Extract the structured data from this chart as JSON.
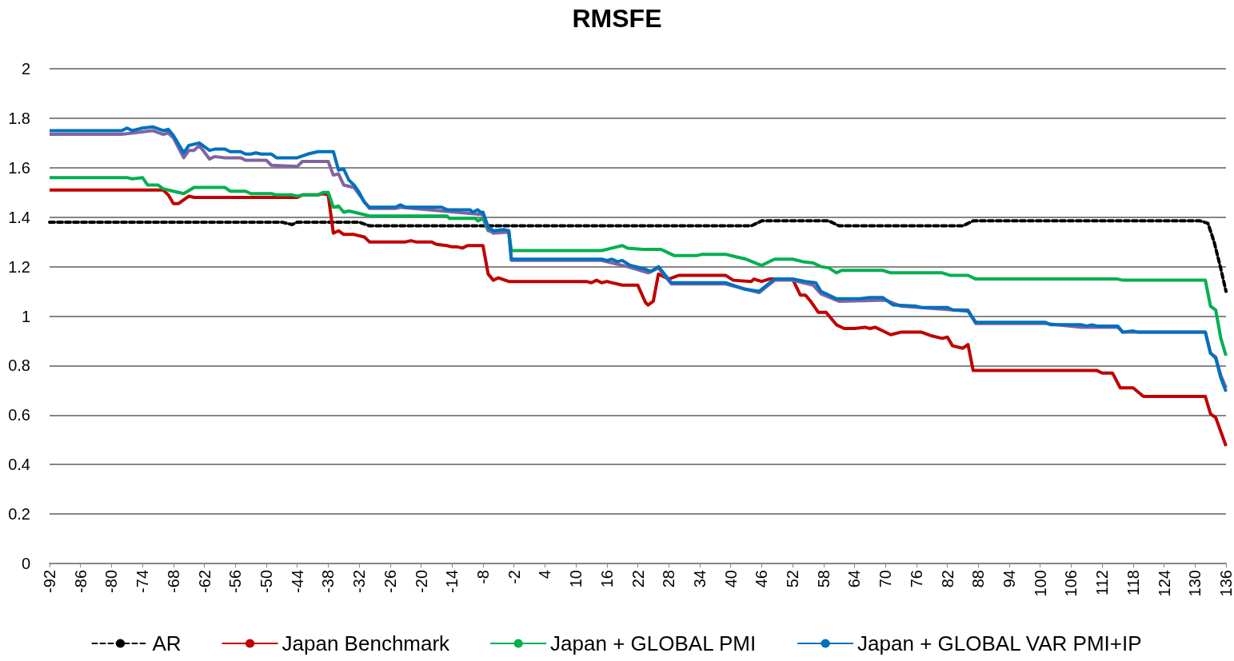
{
  "chart_data": {
    "type": "line",
    "title": "RMSFE",
    "xlim": [
      -92,
      136
    ],
    "xticks": [
      -92,
      -86,
      -80,
      -74,
      -68,
      -62,
      -56,
      -50,
      -44,
      -38,
      -32,
      -26,
      -20,
      -14,
      -8,
      -2,
      4,
      10,
      16,
      22,
      28,
      34,
      40,
      46,
      52,
      58,
      64,
      70,
      76,
      82,
      88,
      94,
      100,
      106,
      112,
      118,
      124,
      130,
      136
    ],
    "ylim": [
      0,
      2
    ],
    "yticks": [
      0,
      0.2,
      0.4,
      0.6,
      0.8,
      1,
      1.2,
      1.4,
      1.6,
      1.8,
      2
    ],
    "grid": "y",
    "legend": "bottom",
    "marker": "none",
    "series": [
      {
        "name": "AR",
        "color": "#000000",
        "line_style": "dashed",
        "x": [
          -92,
          -47,
          -46,
          -45,
          -44,
          -32,
          -30,
          44,
          46,
          59,
          61,
          85,
          87,
          131,
          132.5,
          133.7,
          134.9,
          136
        ],
        "values": [
          1.38,
          1.38,
          1.375,
          1.37,
          1.38,
          1.38,
          1.365,
          1.365,
          1.385,
          1.385,
          1.365,
          1.365,
          1.385,
          1.385,
          1.375,
          1.3,
          1.2,
          1.1
        ]
      },
      {
        "name": "Japan Benchmark",
        "color": "#c00000",
        "line_style": "solid",
        "x": [
          -92,
          -72,
          -70,
          -69,
          -68,
          -67,
          -65,
          -64,
          -44,
          -43,
          -40,
          -39,
          -38,
          -37,
          -36,
          -35,
          -33,
          -31,
          -30,
          -23,
          -22,
          -21,
          -18,
          -17,
          -15,
          -14,
          -13,
          -12,
          -11,
          -8,
          -7,
          -6,
          -5,
          -3,
          12,
          13,
          14,
          15,
          16,
          19,
          22,
          23.5,
          24,
          25,
          26,
          28,
          30,
          39,
          40.5,
          44,
          44.5,
          46,
          47.5,
          52,
          53.5,
          54.5,
          55.5,
          57,
          58.5,
          60.5,
          62,
          64,
          66,
          67,
          68,
          69.5,
          71,
          73,
          77,
          79,
          81,
          82,
          83,
          85,
          86,
          87,
          111,
          112,
          114,
          115.5,
          118,
          120,
          132,
          133,
          134,
          136
        ],
        "values": [
          1.51,
          1.51,
          1.51,
          1.49,
          1.455,
          1.455,
          1.485,
          1.48,
          1.48,
          1.49,
          1.49,
          1.495,
          1.49,
          1.335,
          1.345,
          1.33,
          1.33,
          1.32,
          1.3,
          1.3,
          1.305,
          1.3,
          1.3,
          1.29,
          1.285,
          1.28,
          1.28,
          1.275,
          1.285,
          1.285,
          1.17,
          1.145,
          1.155,
          1.14,
          1.14,
          1.135,
          1.145,
          1.135,
          1.14,
          1.125,
          1.125,
          1.055,
          1.045,
          1.06,
          1.17,
          1.15,
          1.165,
          1.165,
          1.145,
          1.14,
          1.15,
          1.14,
          1.15,
          1.15,
          1.085,
          1.085,
          1.06,
          1.015,
          1.015,
          0.965,
          0.95,
          0.95,
          0.955,
          0.95,
          0.955,
          0.94,
          0.925,
          0.935,
          0.935,
          0.92,
          0.91,
          0.915,
          0.88,
          0.87,
          0.885,
          0.78,
          0.78,
          0.77,
          0.77,
          0.71,
          0.71,
          0.675,
          0.675,
          0.605,
          0.59,
          0.475
        ]
      },
      {
        "name": "Japan + GLOBAL PMI",
        "color": "#00b050",
        "line_style": "solid",
        "x": [
          -92,
          -77,
          -76,
          -74,
          -73,
          -71,
          -70,
          -68,
          -66,
          -64,
          -58,
          -57,
          -54,
          -53,
          -49,
          -48,
          -45,
          -44,
          -43,
          -40,
          -39,
          -38,
          -37,
          -36,
          -35,
          -34,
          -32,
          -30,
          -15,
          -14.5,
          -9.5,
          -9,
          -8,
          -7,
          -4,
          -3,
          -2.5,
          15,
          17,
          19,
          20,
          23,
          26.5,
          29,
          33.5,
          34.5,
          39,
          41,
          43,
          46,
          48.5,
          52,
          54,
          56,
          57.5,
          59,
          60.5,
          61.5,
          69.5,
          71,
          81,
          82.5,
          86,
          87.5,
          115,
          116,
          132,
          133,
          134,
          135,
          136
        ],
        "values": [
          1.56,
          1.56,
          1.555,
          1.56,
          1.53,
          1.53,
          1.515,
          1.505,
          1.495,
          1.52,
          1.52,
          1.505,
          1.505,
          1.495,
          1.495,
          1.49,
          1.49,
          1.485,
          1.49,
          1.49,
          1.5,
          1.5,
          1.44,
          1.445,
          1.42,
          1.425,
          1.415,
          1.405,
          1.405,
          1.395,
          1.395,
          1.385,
          1.395,
          1.345,
          1.34,
          1.34,
          1.265,
          1.265,
          1.275,
          1.285,
          1.275,
          1.27,
          1.27,
          1.245,
          1.245,
          1.25,
          1.25,
          1.24,
          1.23,
          1.205,
          1.23,
          1.23,
          1.22,
          1.215,
          1.2,
          1.195,
          1.175,
          1.185,
          1.185,
          1.175,
          1.175,
          1.165,
          1.165,
          1.15,
          1.15,
          1.145,
          1.145,
          1.04,
          1.025,
          0.91,
          0.84
        ]
      },
      {
        "color": "#8064a2",
        "line_style": "solid",
        "x": [
          -92,
          -78,
          -74,
          -72,
          -70,
          -69,
          -68,
          -66,
          -65,
          -64,
          -63,
          -61,
          -60,
          -58,
          -55,
          -54,
          -50,
          -49,
          -44,
          -43,
          -38,
          -37,
          -36,
          -35,
          -33,
          -30,
          -25,
          -24,
          -8,
          -7,
          -6,
          -3,
          -2.5,
          15,
          20,
          24,
          26,
          28.5,
          39,
          45.5,
          48.5,
          52,
          56,
          57.5,
          61,
          70,
          73,
          83,
          86,
          87.5,
          101,
          108,
          115,
          116,
          132,
          133,
          134,
          135,
          136
        ],
        "values": [
          1.735,
          1.735,
          1.745,
          1.75,
          1.735,
          1.74,
          1.72,
          1.64,
          1.67,
          1.67,
          1.69,
          1.635,
          1.645,
          1.64,
          1.64,
          1.63,
          1.63,
          1.61,
          1.605,
          1.625,
          1.625,
          1.57,
          1.575,
          1.53,
          1.52,
          1.435,
          1.435,
          1.44,
          1.41,
          1.35,
          1.335,
          1.34,
          1.225,
          1.225,
          1.2,
          1.175,
          1.195,
          1.13,
          1.13,
          1.095,
          1.145,
          1.145,
          1.125,
          1.09,
          1.06,
          1.065,
          1.04,
          1.025,
          1.025,
          0.97,
          0.97,
          0.955,
          0.955,
          0.935,
          0.935,
          0.85,
          0.835,
          0.76,
          0.71
        ]
      },
      {
        "name": "Japan + GLOBAL VAR PMI+IP",
        "color": "#0070c0",
        "line_style": "solid",
        "x": [
          -92,
          -78,
          -77,
          -76,
          -74,
          -72,
          -70,
          -69,
          -68,
          -66,
          -65,
          -63,
          -61,
          -60,
          -58,
          -57,
          -55,
          -54,
          -53,
          -52,
          -51,
          -49,
          -48,
          -44,
          -42,
          -40,
          -37,
          -36,
          -35,
          -34,
          -33,
          -32,
          -31,
          -30,
          -25,
          -24,
          -23,
          -16,
          -15,
          -10.5,
          -10,
          -9,
          -8.5,
          -8,
          -7,
          -6,
          -4,
          -3,
          -2.5,
          15,
          16,
          17,
          18,
          19,
          20.5,
          23.5,
          24.5,
          26,
          28.5,
          39,
          42.5,
          45.5,
          48.5,
          52,
          54.5,
          56.5,
          57.5,
          60.5,
          65,
          67,
          69.5,
          71.5,
          76,
          77,
          82,
          83,
          86,
          87.5,
          101,
          102,
          108,
          109,
          110,
          111,
          115,
          116,
          118,
          119,
          132,
          133,
          134,
          135,
          136
        ],
        "values": [
          1.75,
          1.75,
          1.76,
          1.75,
          1.76,
          1.765,
          1.75,
          1.755,
          1.73,
          1.66,
          1.69,
          1.7,
          1.67,
          1.675,
          1.675,
          1.665,
          1.665,
          1.655,
          1.655,
          1.66,
          1.655,
          1.655,
          1.64,
          1.64,
          1.655,
          1.665,
          1.665,
          1.59,
          1.595,
          1.55,
          1.53,
          1.5,
          1.46,
          1.44,
          1.44,
          1.45,
          1.44,
          1.44,
          1.43,
          1.43,
          1.42,
          1.43,
          1.42,
          1.42,
          1.36,
          1.345,
          1.35,
          1.345,
          1.23,
          1.23,
          1.225,
          1.23,
          1.22,
          1.225,
          1.205,
          1.19,
          1.18,
          1.2,
          1.135,
          1.135,
          1.11,
          1.1,
          1.15,
          1.15,
          1.14,
          1.135,
          1.1,
          1.07,
          1.07,
          1.075,
          1.075,
          1.045,
          1.04,
          1.035,
          1.035,
          1.025,
          1.02,
          0.975,
          0.975,
          0.965,
          0.965,
          0.96,
          0.965,
          0.96,
          0.96,
          0.935,
          0.94,
          0.935,
          0.935,
          0.85,
          0.83,
          0.75,
          0.695
        ]
      }
    ]
  }
}
